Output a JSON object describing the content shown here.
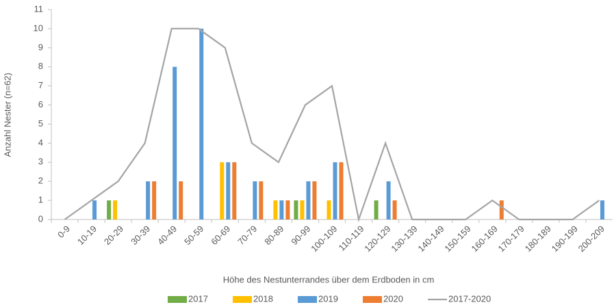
{
  "chart_data": {
    "type": "bar",
    "x_label": "Höhe des Nestunterrandes über dem Erdboden in cm",
    "y_label": "Anzahl Nester (n=62)",
    "categories": [
      "0-9",
      "10-19",
      "20-29",
      "30-39",
      "40-49",
      "50-59",
      "60-69",
      "70-79",
      "80-89",
      "90-99",
      "100-109",
      "110-119",
      "120-129",
      "130-139",
      "140-149",
      "150-159",
      "160-169",
      "170-179",
      "180-189",
      "190-199",
      "200-209"
    ],
    "series": [
      {
        "name": "2017",
        "color": "#70ad47",
        "values": [
          0,
          0,
          1,
          0,
          0,
          0,
          0,
          0,
          0,
          1,
          0,
          0,
          1,
          0,
          0,
          0,
          0,
          0,
          0,
          0,
          0
        ]
      },
      {
        "name": "2018",
        "color": "#ffc000",
        "values": [
          0,
          0,
          1,
          0,
          0,
          0,
          3,
          0,
          1,
          1,
          1,
          0,
          0,
          0,
          0,
          0,
          0,
          0,
          0,
          0,
          0
        ]
      },
      {
        "name": "2019",
        "color": "#5b9bd5",
        "values": [
          0,
          1,
          0,
          2,
          8,
          10,
          3,
          2,
          1,
          2,
          3,
          0,
          2,
          0,
          0,
          0,
          0,
          0,
          0,
          0,
          1
        ]
      },
      {
        "name": "2020",
        "color": "#ed7d31",
        "values": [
          0,
          0,
          0,
          2,
          2,
          0,
          3,
          2,
          1,
          2,
          3,
          0,
          1,
          0,
          0,
          0,
          1,
          0,
          0,
          0,
          0
        ]
      },
      {
        "name": "2017-2020",
        "color": "#a5a5a5",
        "type": "line",
        "values": [
          0,
          1,
          2,
          4,
          10,
          10,
          9,
          4,
          3,
          6,
          7,
          0,
          4,
          0,
          0,
          0,
          1,
          0,
          0,
          0,
          1
        ]
      }
    ],
    "ylim": [
      0,
      11
    ],
    "yticks": [
      0,
      1,
      2,
      3,
      4,
      5,
      6,
      7,
      8,
      9,
      10,
      11
    ],
    "grid": false,
    "legend": "bottom"
  }
}
